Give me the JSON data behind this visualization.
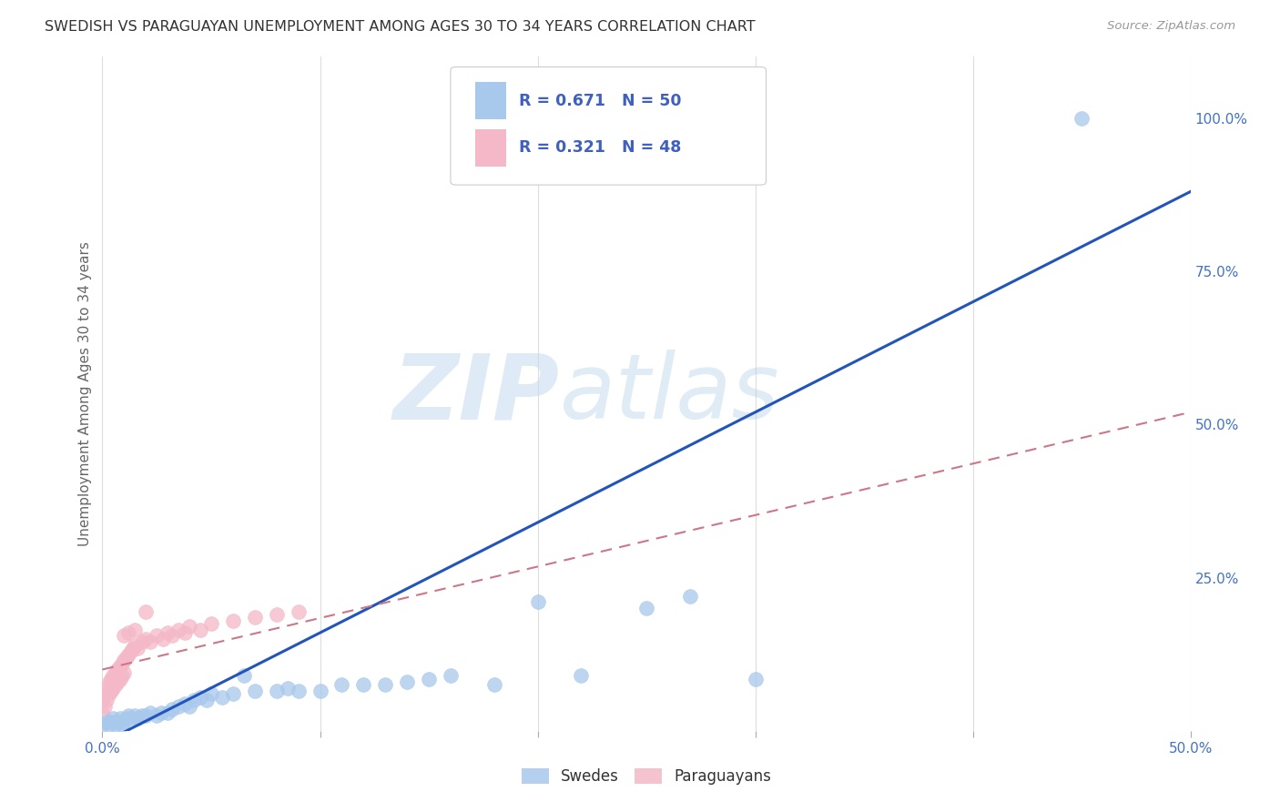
{
  "title": "SWEDISH VS PARAGUAYAN UNEMPLOYMENT AMONG AGES 30 TO 34 YEARS CORRELATION CHART",
  "source": "Source: ZipAtlas.com",
  "ylabel": "Unemployment Among Ages 30 to 34 years",
  "xlim": [
    0.0,
    0.5
  ],
  "ylim": [
    0.0,
    1.1
  ],
  "blue_color": "#A8C8EC",
  "pink_color": "#F4B8C8",
  "blue_line_color": "#2255BB",
  "pink_line_color": "#CC7788",
  "legend_R_blue": "0.671",
  "legend_N_blue": "50",
  "legend_R_pink": "0.321",
  "legend_N_pink": "48",
  "watermark_zip": "ZIP",
  "watermark_atlas": "atlas",
  "background_color": "#ffffff",
  "blue_trend_x": [
    0.0,
    0.5
  ],
  "blue_trend_y": [
    -0.02,
    0.88
  ],
  "pink_trend_x": [
    0.0,
    0.5
  ],
  "pink_trend_y": [
    0.1,
    0.52
  ],
  "sx": [
    0.0,
    0.002,
    0.003,
    0.004,
    0.005,
    0.006,
    0.007,
    0.008,
    0.009,
    0.01,
    0.011,
    0.012,
    0.013,
    0.015,
    0.016,
    0.018,
    0.02,
    0.022,
    0.025,
    0.027,
    0.03,
    0.032,
    0.035,
    0.038,
    0.04,
    0.042,
    0.045,
    0.048,
    0.05,
    0.055,
    0.06,
    0.065,
    0.07,
    0.08,
    0.085,
    0.09,
    0.1,
    0.11,
    0.12,
    0.13,
    0.14,
    0.15,
    0.16,
    0.18,
    0.2,
    0.22,
    0.25,
    0.27,
    0.3,
    0.45
  ],
  "sy": [
    0.01,
    0.015,
    0.01,
    0.015,
    0.02,
    0.01,
    0.015,
    0.02,
    0.01,
    0.015,
    0.02,
    0.025,
    0.02,
    0.025,
    0.02,
    0.025,
    0.025,
    0.03,
    0.025,
    0.03,
    0.03,
    0.035,
    0.04,
    0.045,
    0.04,
    0.05,
    0.055,
    0.05,
    0.06,
    0.055,
    0.06,
    0.09,
    0.065,
    0.065,
    0.07,
    0.065,
    0.065,
    0.075,
    0.075,
    0.075,
    0.08,
    0.085,
    0.09,
    0.075,
    0.21,
    0.09,
    0.2,
    0.22,
    0.085,
    1.0
  ],
  "px": [
    0.0,
    0.0,
    0.001,
    0.001,
    0.002,
    0.002,
    0.003,
    0.003,
    0.004,
    0.004,
    0.005,
    0.005,
    0.006,
    0.006,
    0.007,
    0.007,
    0.008,
    0.008,
    0.009,
    0.009,
    0.01,
    0.01,
    0.011,
    0.012,
    0.013,
    0.014,
    0.015,
    0.016,
    0.018,
    0.02,
    0.022,
    0.025,
    0.028,
    0.03,
    0.032,
    0.035,
    0.038,
    0.04,
    0.045,
    0.05,
    0.06,
    0.07,
    0.08,
    0.09,
    0.01,
    0.012,
    0.015,
    0.02
  ],
  "py": [
    0.03,
    0.05,
    0.04,
    0.06,
    0.05,
    0.07,
    0.06,
    0.08,
    0.065,
    0.085,
    0.07,
    0.09,
    0.075,
    0.095,
    0.08,
    0.1,
    0.085,
    0.105,
    0.09,
    0.11,
    0.095,
    0.115,
    0.12,
    0.125,
    0.13,
    0.135,
    0.14,
    0.135,
    0.145,
    0.15,
    0.145,
    0.155,
    0.15,
    0.16,
    0.155,
    0.165,
    0.16,
    0.17,
    0.165,
    0.175,
    0.18,
    0.185,
    0.19,
    0.195,
    0.155,
    0.16,
    0.165,
    0.195
  ]
}
